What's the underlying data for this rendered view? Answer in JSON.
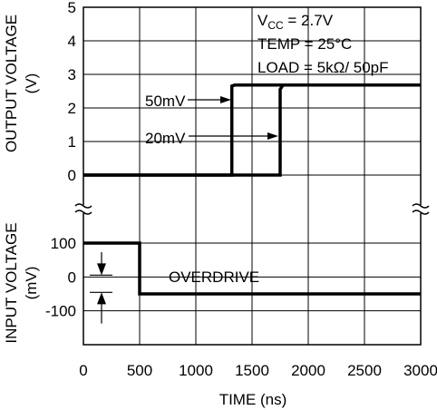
{
  "chart_data": {
    "type": "line",
    "x": {
      "label": "TIME (ns)",
      "range": [
        0,
        3000
      ],
      "ticks": [
        0,
        500,
        1000,
        1500,
        2000,
        2500,
        3000
      ],
      "tick_labels": [
        "0",
        "500",
        "1000",
        "1500",
        "2000",
        "2500",
        "3000"
      ]
    },
    "grid": true,
    "axis_break": true,
    "panels": [
      {
        "id": "output",
        "ylabel_lines": [
          "OUTPUT VOLTAGE",
          "(V)"
        ],
        "ylim": [
          0,
          5
        ],
        "yticks": [
          0,
          1,
          2,
          3,
          4,
          5
        ],
        "ytick_labels": [
          "0",
          "1",
          "2",
          "3",
          "4",
          "5"
        ],
        "series": [
          {
            "name": "50mV",
            "x": [
              0,
              1320,
              1320,
              1345,
              3000
            ],
            "y": [
              0,
              0,
              2.65,
              2.68,
              2.68
            ]
          },
          {
            "name": "20mV",
            "x": [
              0,
              1750,
              1750,
              1775,
              3000
            ],
            "y": [
              0,
              0,
              2.55,
              2.68,
              2.68
            ]
          }
        ]
      },
      {
        "id": "input",
        "ylabel_lines": [
          "INPUT VOLTAGE",
          "(mV)"
        ],
        "ylim": [
          -200,
          100
        ],
        "yticks": [
          100,
          0,
          -100
        ],
        "ytick_labels": [
          "100",
          "0",
          "-100"
        ],
        "series": [
          {
            "name": "input",
            "x": [
              0,
              500,
              500,
              3000
            ],
            "y": [
              100,
              100,
              -50,
              -50
            ]
          }
        ]
      }
    ],
    "conditions": {
      "vcc_label": "V",
      "vcc_sub": "CC",
      "vcc_value": " = 2.7V",
      "temp": "TEMP = 25°C",
      "load": "LOAD = 5kΩ/ 50pF"
    },
    "annotations": {
      "label_50mv": "50mV",
      "label_20mv": "20mV",
      "overdrive": "OVERDRIVE"
    }
  }
}
